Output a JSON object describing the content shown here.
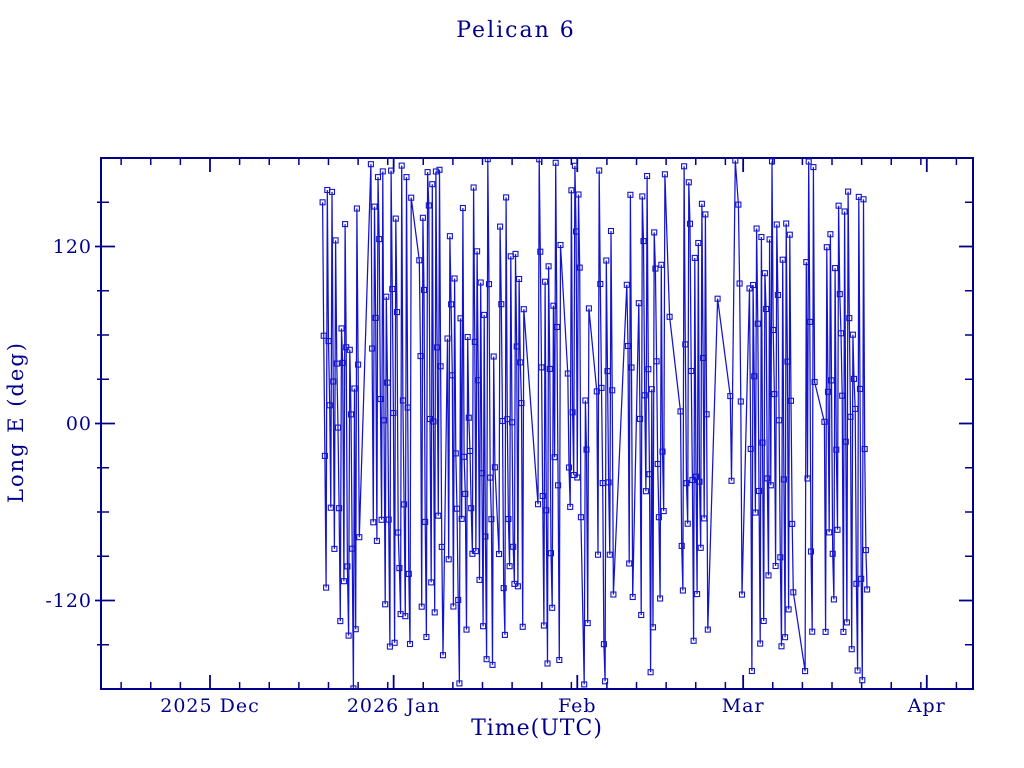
{
  "chart_data": {
    "type": "line",
    "title": "Pelican 6",
    "xlabel": "Time(UTC)",
    "ylabel": "Long E (deg)",
    "grid": false,
    "legend": null,
    "colors": {
      "frame": "#00008b",
      "text": "#00008b",
      "data": "#1414cc"
    },
    "x_axis": {
      "unit": "days since 2025-12-01 00:00 UTC",
      "range": [
        -18.4,
        128.8
      ],
      "major_ticks": [
        {
          "day": 0,
          "label": "2025 Dec"
        },
        {
          "day": 31,
          "label": "2026 Jan"
        },
        {
          "day": 62,
          "label": "Feb"
        },
        {
          "day": 90,
          "label": "Mar"
        },
        {
          "day": 121,
          "label": "Apr"
        }
      ],
      "minor_tick_interval_days": 5,
      "months": [
        {
          "start_day": -30,
          "length": 30
        },
        {
          "start_day": 0,
          "length": 31
        },
        {
          "start_day": 31,
          "length": 31
        },
        {
          "start_day": 62,
          "length": 28
        },
        {
          "start_day": 90,
          "length": 31
        },
        {
          "start_day": 121,
          "length": 30
        }
      ]
    },
    "y_axis": {
      "range": [
        -180,
        180
      ],
      "major_ticks": [
        {
          "value": 120,
          "label": "120"
        },
        {
          "value": 0,
          "label": "00"
        },
        {
          "value": -120,
          "label": "-120"
        }
      ],
      "minor_tick_interval_deg": 30
    },
    "series": [
      {
        "name": "Pelican 6 longitude",
        "marker": "open-square",
        "marker_size_px": 5,
        "start_day": 19.0,
        "end_day": 111.0,
        "step_days": 0.2,
        "initial_longitude_deg": 150,
        "drift_deg_per_step": -95,
        "drift_jitter_deg": 75,
        "wrap_range": [
          -180,
          180
        ],
        "gap_probability": 0.05,
        "gap_extra_days_max": 2.0,
        "seed": 11
      }
    ]
  }
}
